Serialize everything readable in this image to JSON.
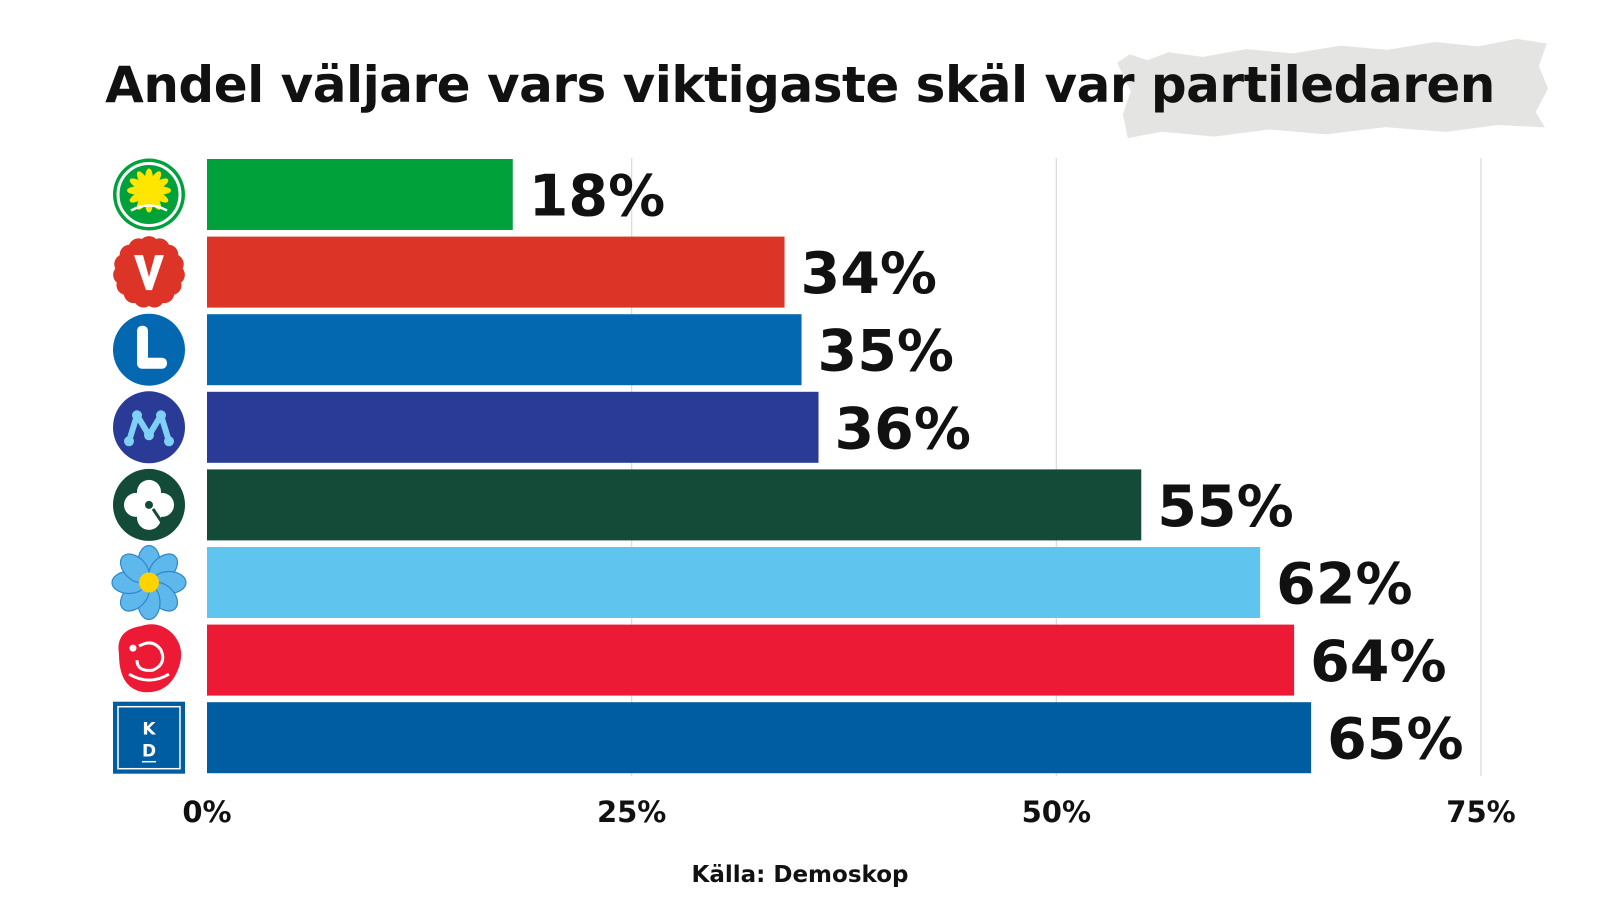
{
  "chart_data": {
    "type": "bar",
    "orientation": "horizontal",
    "title": "Andel väljare vars viktigaste skäl var partiledaren",
    "categories": [
      "MP",
      "V",
      "L",
      "M",
      "C",
      "SD",
      "S",
      "KD"
    ],
    "values": [
      18,
      34,
      35,
      36,
      55,
      62,
      64,
      65
    ],
    "value_labels": [
      "18%",
      "34%",
      "35%",
      "36%",
      "55%",
      "62%",
      "64%",
      "65%"
    ],
    "bar_colors": [
      "#00a03b",
      "#dd3428",
      "#0468b1",
      "#293b97",
      "#134a38",
      "#5fc5ef",
      "#ec1a35",
      "#005da2"
    ],
    "xlim": [
      0,
      75
    ],
    "x_ticks": [
      0,
      25,
      50,
      75
    ],
    "x_tick_labels": [
      "0%",
      "25%",
      "50%",
      "75%"
    ],
    "grid": true,
    "source": "Källa: Demoskop"
  },
  "party_icons": [
    "mp-dandelion-icon",
    "v-carnation-icon",
    "l-letter-icon",
    "m-logo-icon",
    "c-clover-icon",
    "sd-hepatica-icon",
    "s-rose-icon",
    "kd-logo-icon"
  ],
  "kd_logo_letters": [
    "K",
    "D"
  ]
}
